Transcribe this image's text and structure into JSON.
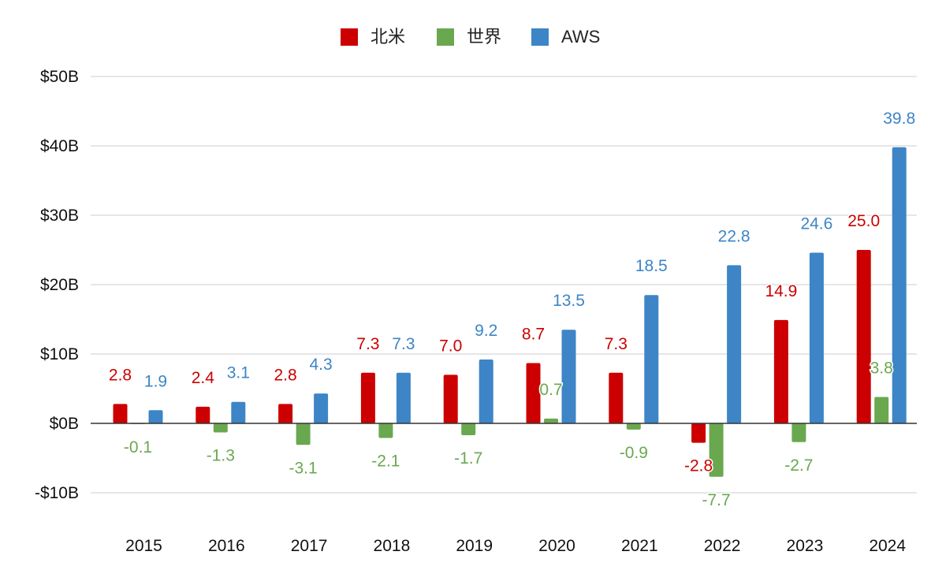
{
  "chart_data": {
    "type": "bar",
    "categories": [
      "2015",
      "2016",
      "2017",
      "2018",
      "2019",
      "2020",
      "2021",
      "2022",
      "2023",
      "2024"
    ],
    "series": [
      {
        "name": "北米",
        "color": "#cc0000",
        "values": [
          2.8,
          2.4,
          2.8,
          7.3,
          7.0,
          8.7,
          7.3,
          -2.8,
          14.9,
          25.0
        ]
      },
      {
        "name": "世界",
        "color": "#6aa84f",
        "values": [
          -0.1,
          -1.3,
          -3.1,
          -2.1,
          -1.7,
          0.7,
          -0.9,
          -7.7,
          -2.7,
          3.8
        ]
      },
      {
        "name": "AWS",
        "color": "#3d85c6",
        "values": [
          1.9,
          3.1,
          4.3,
          7.3,
          9.2,
          13.5,
          18.5,
          22.8,
          24.6,
          39.8
        ]
      }
    ],
    "data_labels": [
      [
        "2.8",
        "2.4",
        "2.8",
        "7.3",
        "7.0",
        "8.7",
        "7.3",
        "-2.8",
        "14.9",
        "25.0"
      ],
      [
        "-0.1",
        "-1.3",
        "-3.1",
        "-2.1",
        "-1.7",
        "0.7",
        "-0.9",
        "-7.7",
        "-2.7",
        "3.8"
      ],
      [
        "1.9",
        "3.1",
        "4.3",
        "7.3",
        "9.2",
        "13.5",
        "18.5",
        "22.8",
        "24.6",
        "39.8"
      ]
    ],
    "y_ticks": [
      {
        "value": 50,
        "label": "$50B"
      },
      {
        "value": 40,
        "label": "$40B"
      },
      {
        "value": 30,
        "label": "$30B"
      },
      {
        "value": 20,
        "label": "$20B"
      },
      {
        "value": 10,
        "label": "$10B"
      },
      {
        "value": 0,
        "label": "$0B"
      },
      {
        "value": -10,
        "label": "-$10B"
      }
    ],
    "ylim": [
      -10,
      50
    ],
    "title": "",
    "xlabel": "",
    "ylabel": "",
    "grid": true,
    "legend_position": "top-center",
    "gridline_color": "#cccccc",
    "zero_line_color": "#333333"
  }
}
